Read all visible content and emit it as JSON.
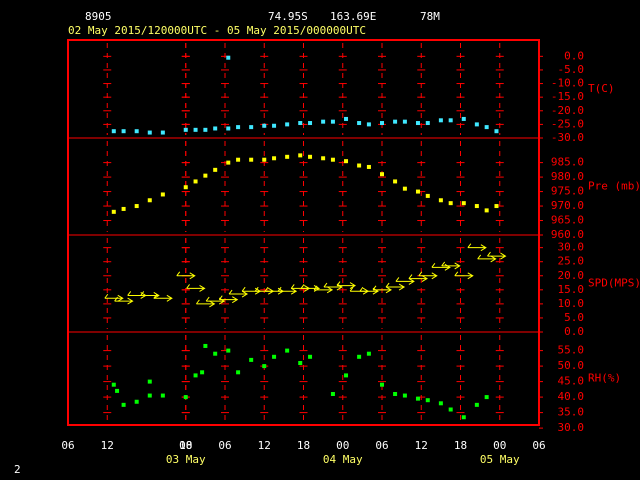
{
  "header": {
    "station": "8905",
    "lat": "74.95S",
    "lon": "163.69E",
    "elev": "78M",
    "period": "02 May 2015/120000UTC - 05 May 2015/000000UTC"
  },
  "page_number": "2",
  "x_axis": {
    "xlim": [
      0,
      72
    ],
    "xticks": [
      {
        "value": 0,
        "label": "06"
      },
      {
        "value": 6,
        "label": "12"
      },
      18,
      {
        "value": 18,
        "label": "00"
      },
      {
        "value": 24,
        "label": "06"
      },
      {
        "value": 30,
        "label": "12"
      },
      {
        "value": 36,
        "label": "18"
      },
      {
        "value": 42,
        "label": "00"
      },
      {
        "value": 48,
        "label": "06"
      },
      {
        "value": 54,
        "label": "12"
      },
      {
        "value": 60,
        "label": "18"
      },
      {
        "value": 66,
        "label": "00"
      },
      {
        "value": 72,
        "label": "06"
      }
    ],
    "day_labels": [
      {
        "value": 18,
        "label": "03 May"
      },
      {
        "value": 42,
        "label": "04 May"
      },
      {
        "value": 66,
        "label": "05 May"
      }
    ]
  },
  "chart_data": [
    {
      "type": "scatter",
      "y_label": "T(C)",
      "color": "#40e8ff",
      "grid": true,
      "ylim": [
        -30,
        6
      ],
      "yticks": [
        {
          "value": 0,
          "label": "0.0"
        },
        {
          "value": -5,
          "label": "-5.0"
        },
        {
          "value": -10,
          "label": "-10.0"
        },
        {
          "value": -15,
          "label": "-15.0"
        },
        {
          "value": -20,
          "label": "-20.0"
        },
        {
          "value": -25,
          "label": "-25.0"
        },
        {
          "value": -30,
          "label": "-30.0"
        }
      ],
      "x": [
        7,
        8.5,
        10.5,
        12.5,
        14.5,
        18,
        19.5,
        21,
        22.5,
        24.5,
        24.5,
        26,
        28,
        30,
        31.5,
        33.5,
        35.5,
        37,
        39,
        40.5,
        42.5,
        44.5,
        46,
        48,
        50,
        51.5,
        53.5,
        55,
        57,
        58.5,
        60.5,
        62.5,
        64,
        65.5
      ],
      "values": [
        -27.5,
        -27.5,
        -27.5,
        -28,
        -28,
        -27,
        -27,
        -27,
        -26.5,
        -0.5,
        -26.5,
        -26,
        -26,
        -25.5,
        -25.5,
        -25,
        -24.5,
        -24.5,
        -24,
        -24,
        -23,
        -24.5,
        -25,
        -24.5,
        -24,
        -24,
        -24.5,
        -24.5,
        -23.5,
        -23.5,
        -23,
        -25,
        -26,
        -27.5
      ]
    },
    {
      "type": "scatter",
      "y_label": "Pre (mb)",
      "color": "#ffff00",
      "grid": true,
      "ylim": [
        960,
        993.5
      ],
      "yticks": [
        {
          "value": 985,
          "label": "985.0"
        },
        {
          "value": 980,
          "label": "980.0"
        },
        {
          "value": 975,
          "label": "975.0"
        },
        {
          "value": 970,
          "label": "970.0"
        },
        {
          "value": 965,
          "label": "965.0"
        },
        {
          "value": 960,
          "label": "960.0"
        }
      ],
      "x": [
        7,
        8.5,
        10.5,
        12.5,
        14.5,
        18,
        19.5,
        21,
        22.5,
        24.5,
        26,
        28,
        30,
        31.5,
        33.5,
        35.5,
        37,
        39,
        40.5,
        42.5,
        44.5,
        46,
        48,
        50,
        51.5,
        53.5,
        55,
        57,
        58.5,
        60.5,
        62.5,
        64,
        65.5
      ],
      "values": [
        968,
        969,
        970,
        972,
        974,
        976.5,
        978.5,
        980.5,
        982.5,
        985,
        986,
        986,
        986,
        986.5,
        987,
        987.5,
        987,
        986.5,
        986,
        985.5,
        984,
        983.5,
        981,
        978.5,
        976,
        975,
        973.5,
        972,
        971,
        971,
        970,
        968.5,
        970
      ]
    },
    {
      "type": "wind",
      "y_label": "SPD(MPS)",
      "color": "#ffff00",
      "grid": true,
      "ylim": [
        0,
        34.5
      ],
      "yticks": [
        {
          "value": 30,
          "label": "30.0"
        },
        {
          "value": 25,
          "label": "25.0"
        },
        {
          "value": 20,
          "label": "20.0"
        },
        {
          "value": 15,
          "label": "15.0"
        },
        {
          "value": 10,
          "label": "10.0"
        },
        {
          "value": 5,
          "label": "5.0"
        },
        {
          "value": 0,
          "label": "0.0"
        }
      ],
      "x": [
        7,
        8.5,
        10.5,
        12.5,
        14.5,
        18,
        19.5,
        21,
        22.5,
        24.5,
        26,
        28,
        30,
        31.5,
        33.5,
        35.5,
        37,
        39,
        40.5,
        42.5,
        44.5,
        46,
        48,
        50,
        51.5,
        53.5,
        55,
        57,
        58.5,
        60.5,
        62.5,
        64,
        65.5
      ],
      "values": [
        12,
        11,
        13,
        13,
        12,
        20,
        15.5,
        10,
        11,
        11.5,
        13.5,
        14.5,
        14.5,
        14.5,
        14.5,
        15.5,
        15.5,
        15,
        16,
        16.5,
        14.5,
        14.5,
        15,
        16,
        18,
        19,
        20,
        23,
        23.5,
        20,
        30,
        26,
        27
      ]
    },
    {
      "type": "scatter",
      "y_label": "RH(%)",
      "color": "#00ff00",
      "grid": true,
      "ylim": [
        31,
        61
      ],
      "yticks": [
        {
          "value": 55,
          "label": "55.0"
        },
        {
          "value": 50,
          "label": "50.0"
        },
        {
          "value": 45,
          "label": "45.0"
        },
        {
          "value": 40,
          "label": "40.0"
        },
        {
          "value": 35,
          "label": "35.0"
        },
        {
          "value": 30,
          "label": "30.0"
        }
      ],
      "x": [
        7,
        7.5,
        8.5,
        10.5,
        12.5,
        12.5,
        14.5,
        18,
        19.5,
        20.5,
        21,
        22.5,
        24.5,
        26,
        28,
        30,
        31.5,
        33.5,
        35.5,
        37,
        40.5,
        42.5,
        44.5,
        46,
        48,
        50,
        51.5,
        53.5,
        55,
        57,
        58.5,
        60.5,
        62.5,
        64
      ],
      "values": [
        44,
        42,
        37.5,
        38.5,
        45,
        40.5,
        40.5,
        40,
        47,
        48,
        56.5,
        54,
        55,
        48,
        52,
        50,
        53,
        55,
        51,
        53,
        41,
        47,
        53,
        54,
        44,
        41,
        40.5,
        39.5,
        39,
        38,
        36,
        33.5,
        37.5,
        40
      ]
    }
  ]
}
